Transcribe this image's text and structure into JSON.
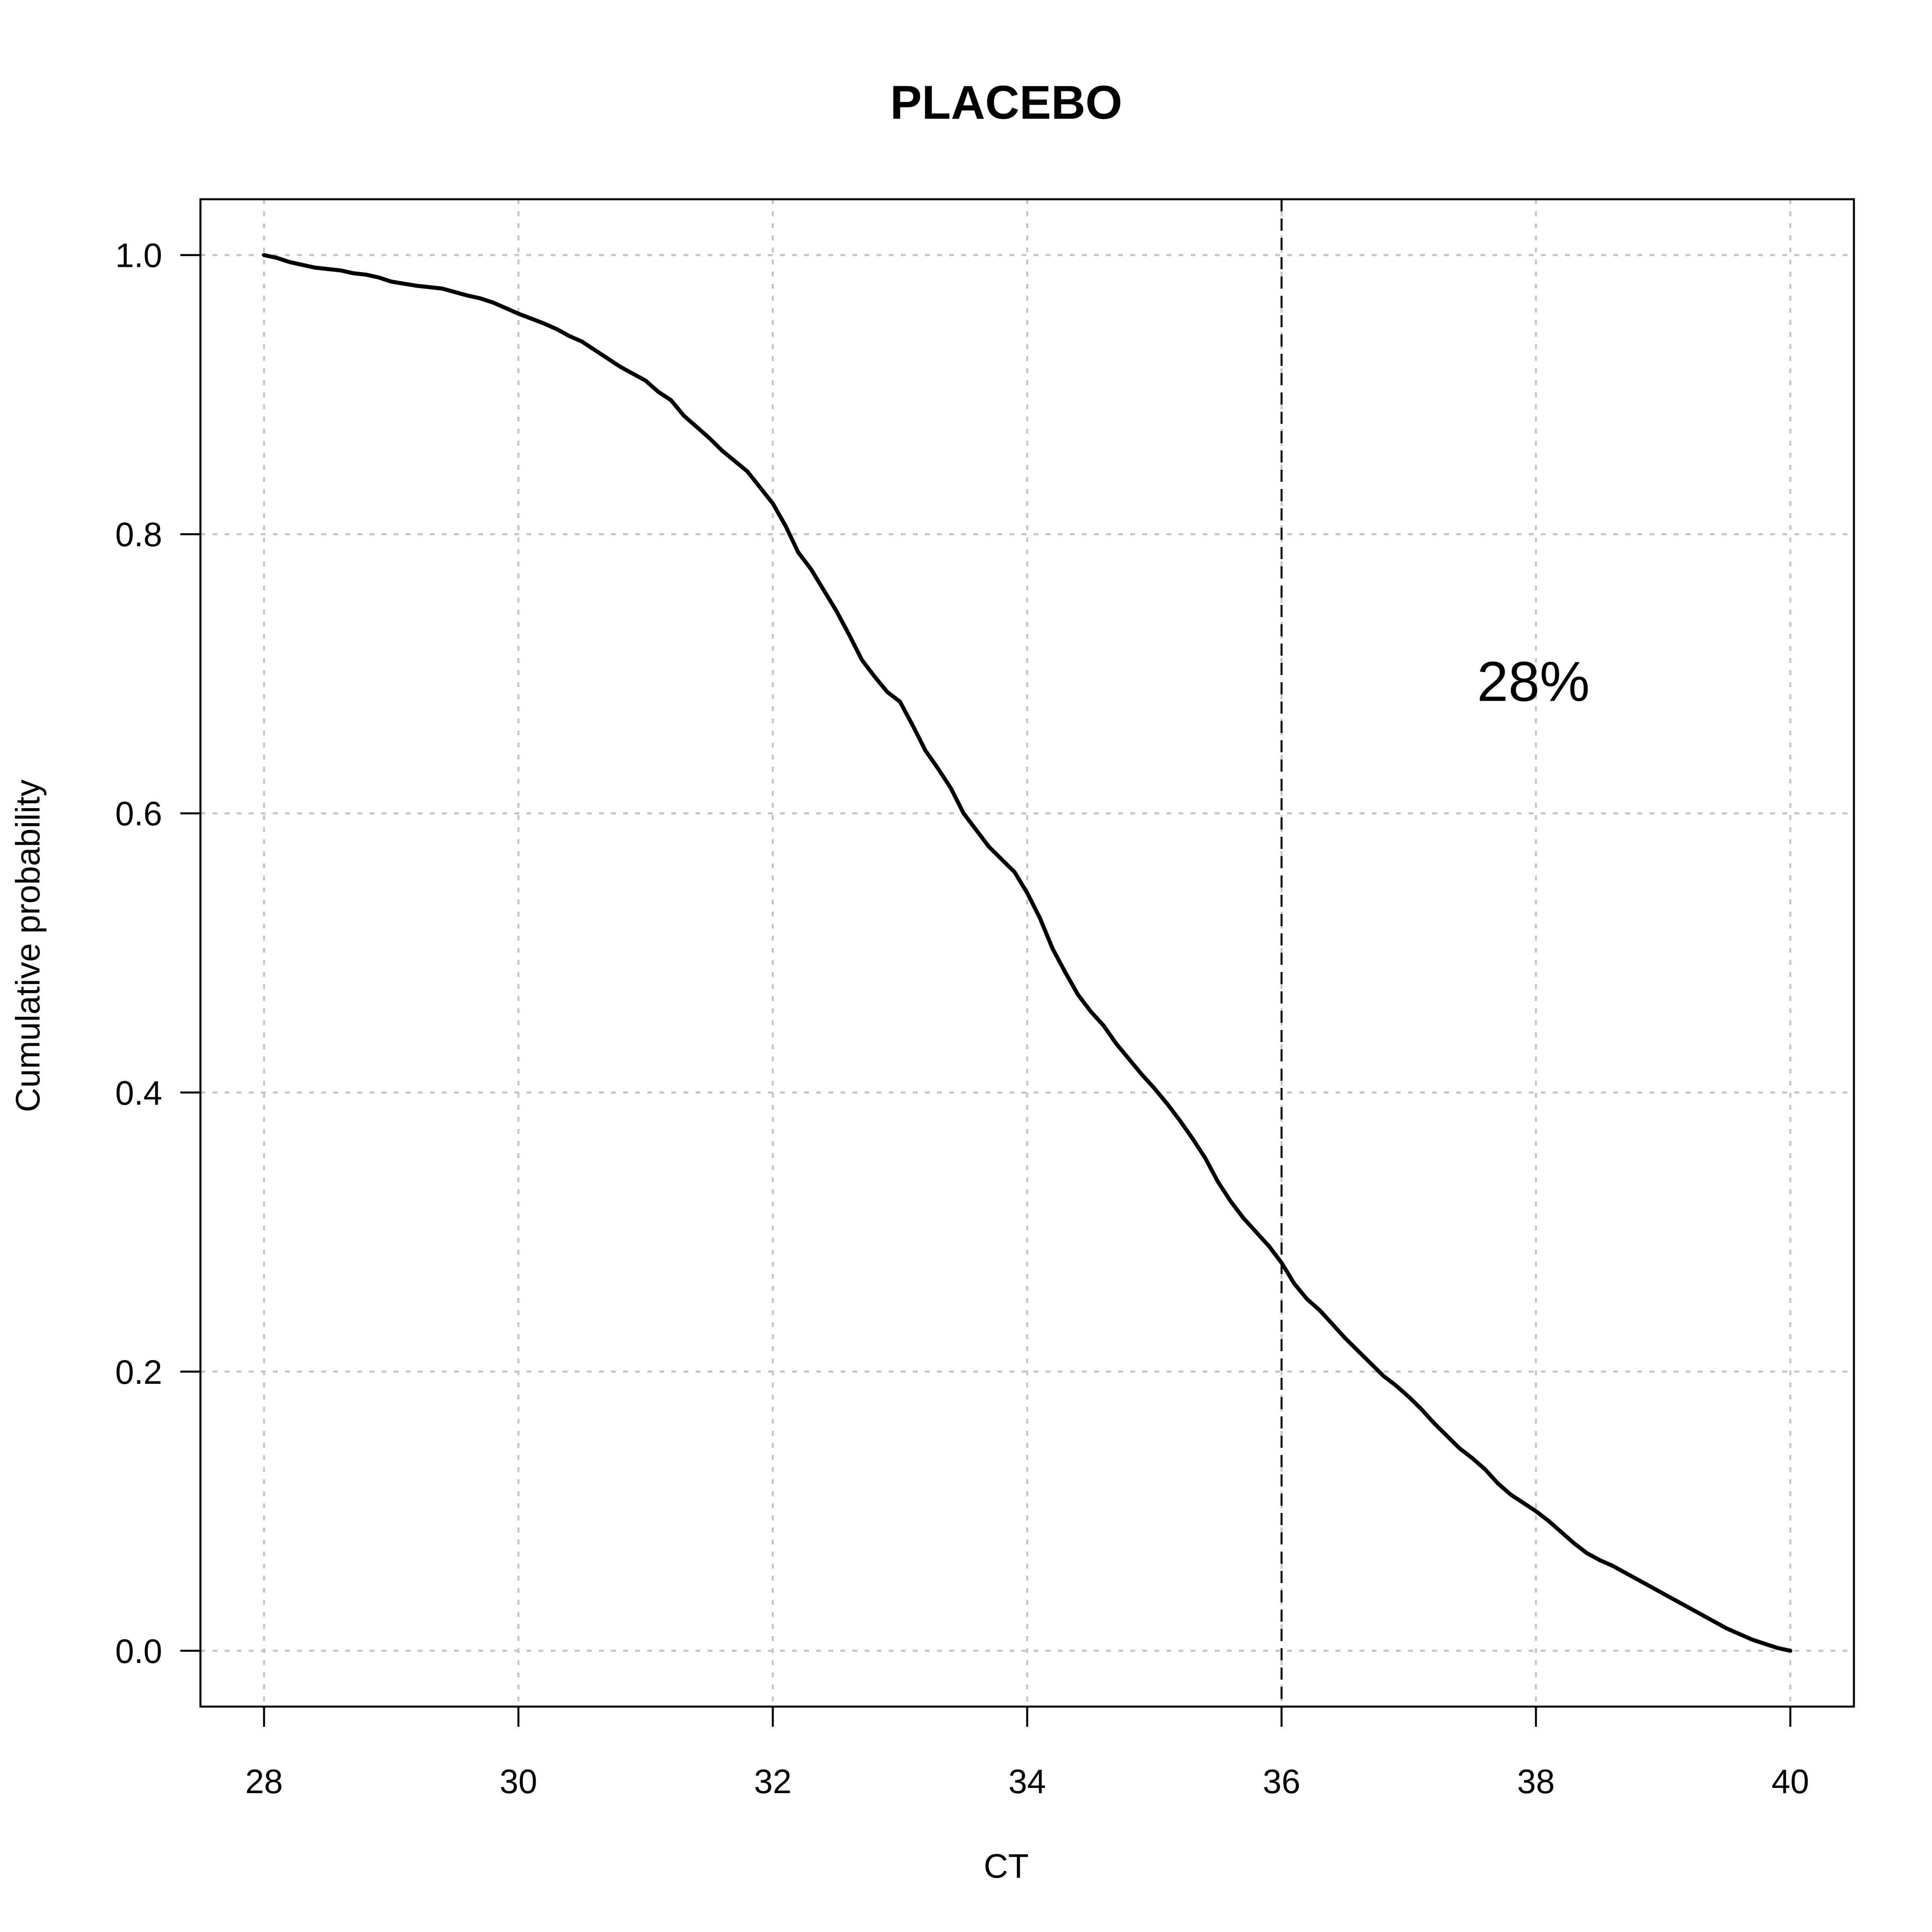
{
  "chart_data": {
    "type": "line",
    "title": "PLACEBO",
    "xlabel": "CT",
    "ylabel": "Cumulative probability",
    "xlim": [
      27.5,
      40.5
    ],
    "ylim": [
      -0.04,
      1.04
    ],
    "x_ticks": [
      28,
      30,
      32,
      34,
      36,
      38,
      40
    ],
    "y_ticks": [
      0.0,
      0.2,
      0.4,
      0.6,
      0.8,
      1.0
    ],
    "x_tick_labels": [
      "28",
      "30",
      "32",
      "34",
      "36",
      "38",
      "40"
    ],
    "y_tick_labels": [
      "0.0",
      "0.2",
      "0.4",
      "0.6",
      "0.8",
      "1.0"
    ],
    "grid": true,
    "line_color": "#000000",
    "grid_color": "#c4c4c4",
    "reference_line": {
      "x": 36
    },
    "annotation": {
      "text": "28%",
      "x": 37.98,
      "y": 0.695
    },
    "series": [
      {
        "x": [
          28.0,
          28.1,
          28.2,
          28.3,
          28.4,
          28.5,
          28.6,
          28.7,
          28.8,
          28.9,
          29.0,
          29.2,
          29.4,
          29.6,
          29.7,
          29.8,
          30.0,
          30.2,
          30.3,
          30.4,
          30.5,
          30.6,
          30.7,
          30.8,
          30.9,
          31.0,
          31.1,
          31.2,
          31.3,
          31.5,
          31.6,
          31.8,
          32.0,
          32.1,
          32.2,
          32.3,
          32.4,
          32.5,
          32.6,
          32.7,
          32.8,
          32.9,
          33.0,
          33.1,
          33.2,
          33.3,
          33.4,
          33.5,
          33.6,
          33.7,
          33.9,
          34.0,
          34.1,
          34.2,
          34.3,
          34.4,
          34.5,
          34.6,
          34.7,
          34.8,
          34.9,
          35.0,
          35.1,
          35.2,
          35.3,
          35.4,
          35.5,
          35.6,
          35.7,
          35.8,
          35.9,
          36.0,
          36.1,
          36.2,
          36.3,
          36.4,
          36.5,
          36.6,
          36.7,
          36.8,
          36.9,
          37.0,
          37.1,
          37.2,
          37.3,
          37.4,
          37.5,
          37.6,
          37.7,
          37.8,
          37.9,
          38.0,
          38.1,
          38.2,
          38.3,
          38.4,
          38.5,
          38.6,
          38.7,
          38.8,
          38.9,
          39.0,
          39.1,
          39.2,
          39.3,
          39.4,
          39.5,
          39.6,
          39.7,
          39.8,
          39.9,
          40.0
        ],
        "y": [
          1.0,
          0.998,
          0.995,
          0.993,
          0.991,
          0.99,
          0.989,
          0.987,
          0.986,
          0.984,
          0.981,
          0.978,
          0.976,
          0.971,
          0.969,
          0.966,
          0.958,
          0.951,
          0.947,
          0.942,
          0.938,
          0.932,
          0.926,
          0.92,
          0.915,
          0.91,
          0.902,
          0.896,
          0.885,
          0.869,
          0.86,
          0.845,
          0.822,
          0.806,
          0.787,
          0.775,
          0.76,
          0.745,
          0.728,
          0.71,
          0.698,
          0.687,
          0.68,
          0.663,
          0.645,
          0.632,
          0.618,
          0.6,
          0.588,
          0.576,
          0.558,
          0.543,
          0.525,
          0.503,
          0.486,
          0.47,
          0.458,
          0.448,
          0.435,
          0.424,
          0.413,
          0.403,
          0.392,
          0.38,
          0.367,
          0.353,
          0.336,
          0.322,
          0.31,
          0.3,
          0.29,
          0.278,
          0.263,
          0.252,
          0.244,
          0.234,
          0.224,
          0.215,
          0.206,
          0.197,
          0.19,
          0.182,
          0.173,
          0.163,
          0.154,
          0.145,
          0.138,
          0.13,
          0.12,
          0.112,
          0.106,
          0.1,
          0.093,
          0.085,
          0.077,
          0.07,
          0.065,
          0.061,
          0.056,
          0.051,
          0.046,
          0.041,
          0.036,
          0.031,
          0.026,
          0.021,
          0.016,
          0.012,
          0.008,
          0.005,
          0.002,
          0.0
        ]
      }
    ]
  }
}
